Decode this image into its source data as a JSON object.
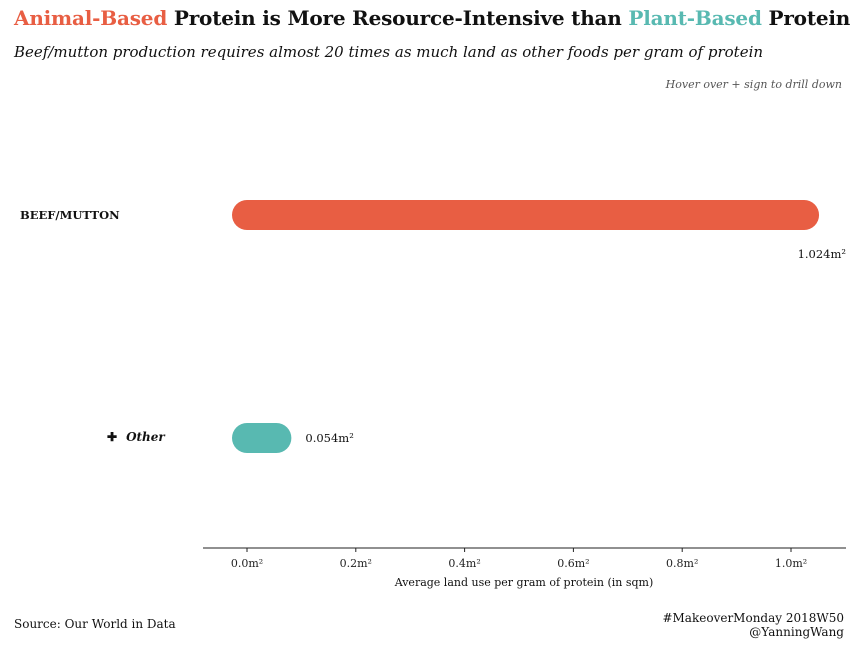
{
  "header": {
    "title_animal": "Animal-Based",
    "title_mid": " Protein is More Resource-Intensive than ",
    "title_plant": "Plant-Based",
    "title_end": " Protein",
    "subtitle": "Beef/mutton production requires almost 20 times as much land as other foods per gram of protein",
    "hint": "Hover over + sign to drill down"
  },
  "colors": {
    "animal": "#e85e43",
    "plant": "#58b9b1"
  },
  "footer": {
    "source": "Source: Our World in Data",
    "credit_line1": "#MakeoverMonday 2018W50",
    "credit_line2": "@YanningWang"
  },
  "chart_data": {
    "type": "bar",
    "orientation": "horizontal",
    "categories": [
      "BEEF/MUTTON",
      "Other"
    ],
    "values": [
      1.024,
      0.054
    ],
    "value_labels": [
      "1.024m²",
      "0.054m²"
    ],
    "colors": [
      "#e85e43",
      "#58b9b1"
    ],
    "xlabel": "Average land use per gram of protein (in sqm)",
    "xlim": [
      -0.05,
      1.1
    ],
    "xticks": [
      0,
      0.2,
      0.4,
      0.6,
      0.8,
      1.0
    ],
    "xtick_labels": [
      "0.0m²",
      "0.2m²",
      "0.4m²",
      "0.6m²",
      "0.8m²",
      "1.0m²"
    ],
    "grid": false
  }
}
